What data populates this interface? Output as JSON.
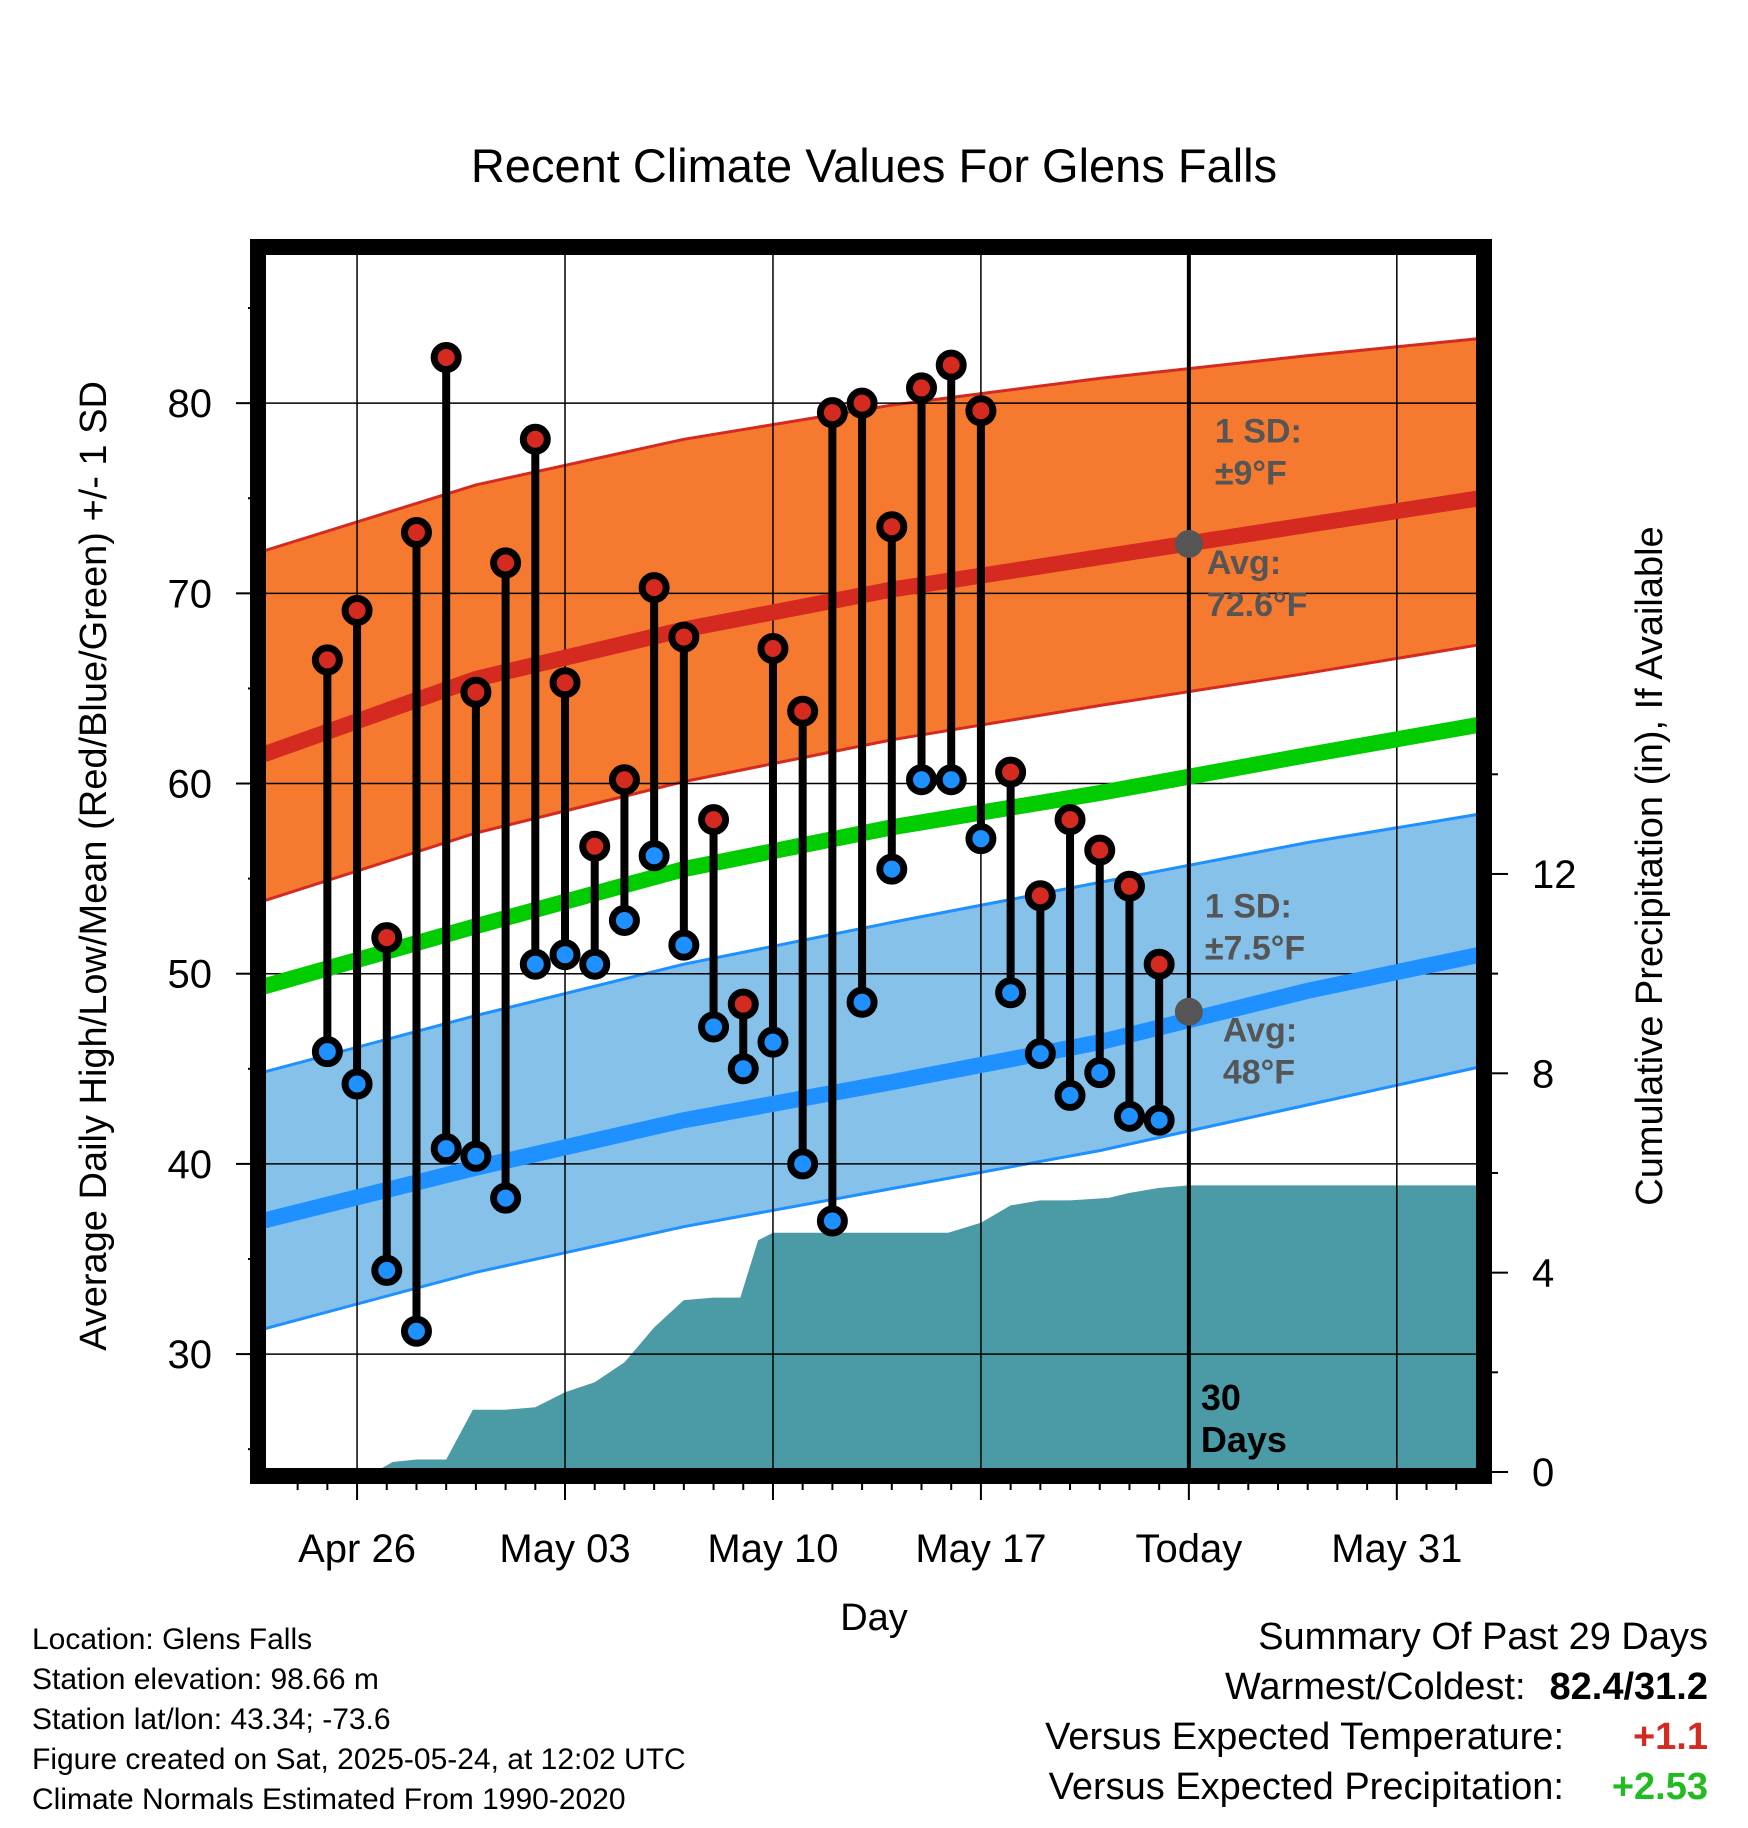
{
  "chart_data": {
    "type": "line",
    "title": "Recent Climate Values For Glens Falls",
    "xlabel": "Day",
    "ylabel": "Average Daily High/Low/Mean (Red/Blue/Green) +/- 1 SD",
    "y2label": "Cumulative Precipitation (in), If Available",
    "x_ticks": [
      {
        "day": 26,
        "label": "Apr 26"
      },
      {
        "day": 33,
        "label": "May 03"
      },
      {
        "day": 40,
        "label": "May 10"
      },
      {
        "day": 47,
        "label": "May 17"
      },
      {
        "day": 54,
        "label": "Today"
      },
      {
        "day": 61,
        "label": "May 31"
      }
    ],
    "xlim": [
      22.8,
      63.8
    ],
    "ylim": [
      23.8,
      88
    ],
    "y_ticks": [
      30,
      40,
      50,
      60,
      70,
      80
    ],
    "y2lim": [
      0,
      24.5
    ],
    "y2_ticks": [
      0,
      4,
      8,
      12
    ],
    "grid": true,
    "today_day": 54,
    "today_label_line1": "30",
    "today_label_line2": "Days",
    "colors": {
      "high_band": "#f57a30",
      "high_line": "#d42a20",
      "low_band": "#85c1e9",
      "low_line": "#1e90ff",
      "mean_line": "#00cc00",
      "precip": "#4a9ba5",
      "high_marker": "#d42a20",
      "low_marker": "#1e90ff",
      "avg_marker": "#555555",
      "annotation": "#555555"
    },
    "normals": {
      "x": [
        22.8,
        30,
        37,
        44,
        51,
        58,
        63.8
      ],
      "high_avg": [
        61.5,
        65.5,
        68.1,
        70.2,
        71.9,
        73.6,
        75
      ],
      "high_upper": [
        72.2,
        75.7,
        78.1,
        79.9,
        81.3,
        82.5,
        83.4
      ],
      "high_lower": [
        53.8,
        57.4,
        60.1,
        62.3,
        64.1,
        65.8,
        67.3
      ],
      "mean": [
        49.3,
        52.5,
        55.5,
        57.7,
        59.5,
        61.5,
        63.1
      ],
      "low_avg": [
        37,
        39.8,
        42.3,
        44.3,
        46.4,
        49.1,
        51
      ],
      "low_upper": [
        44.8,
        47.8,
        50.5,
        52.7,
        54.8,
        56.9,
        58.4
      ],
      "low_lower": [
        31.3,
        34.3,
        36.7,
        38.7,
        40.7,
        43.1,
        45.1
      ]
    },
    "observed": {
      "days": [
        25,
        26,
        27,
        28,
        29,
        30,
        31,
        32,
        33,
        34,
        35,
        36,
        37,
        38,
        39,
        40,
        41,
        42,
        43,
        44,
        45,
        46,
        47,
        48,
        49,
        50,
        51,
        52,
        53
      ],
      "highs": [
        66.5,
        69.1,
        51.9,
        73.2,
        82.4,
        64.8,
        71.6,
        78.1,
        65.3,
        56.7,
        60.2,
        70.3,
        67.7,
        58.1,
        48.4,
        67.1,
        63.8,
        79.5,
        80.0,
        73.5,
        80.8,
        82.0,
        79.6,
        60.6,
        54.1,
        58.1,
        56.5,
        54.6,
        50.5
      ],
      "lows": [
        45.9,
        44.2,
        34.4,
        31.2,
        40.8,
        40.4,
        38.2,
        50.5,
        51.0,
        50.5,
        52.8,
        56.2,
        51.5,
        47.2,
        45.0,
        46.4,
        40.0,
        37.0,
        48.5,
        55.5,
        60.2,
        60.2,
        57.1,
        49.0,
        45.8,
        43.6,
        44.8,
        42.5,
        42.3
      ]
    },
    "precip": {
      "x": [
        22.8,
        26.6,
        27.2,
        28.0,
        29.0,
        29.9,
        30.4,
        31.0,
        32.0,
        33.0,
        34.0,
        35.0,
        36.0,
        37.0,
        38.0,
        38.9,
        39.5,
        40.0,
        45.3,
        45.9,
        47.0,
        48.0,
        49.0,
        50.0,
        51.3,
        52.0,
        53.0,
        54.0,
        63.8
      ],
      "y": [
        0,
        0,
        0.2,
        0.25,
        0.25,
        1.25,
        1.25,
        1.25,
        1.3,
        1.6,
        1.8,
        2.2,
        2.9,
        3.45,
        3.5,
        3.5,
        4.65,
        4.8,
        4.8,
        4.8,
        5.0,
        5.35,
        5.45,
        5.45,
        5.5,
        5.6,
        5.7,
        5.75,
        5.75
      ]
    },
    "annotations": {
      "high_sd_label": "1 SD:",
      "high_sd_value": "±9°F",
      "high_avg_label": "Avg:",
      "high_avg_value": "72.6°F",
      "high_avg_point": 72.6,
      "low_sd_label": "1 SD:",
      "low_sd_value": "±7.5°F",
      "low_avg_label": "Avg:",
      "low_avg_value": "48°F",
      "low_avg_point": 48
    }
  },
  "footer": {
    "location": "Location: Glens Falls",
    "elevation": "Station elevation: 98.66 m",
    "latlon": "Station lat/lon: 43.34; -73.6",
    "created": "Figure created on Sat, 2025-05-24, at 12:02 UTC",
    "normals": "Climate Normals Estimated From 1990-2020"
  },
  "summary": {
    "title": "Summary Of Past 29 Days",
    "warmest_label": "Warmest/Coldest:",
    "warmest_value": "82.4/31.2",
    "temp_label": "Versus Expected Temperature:",
    "temp_value": "+1.1",
    "temp_color": "#d42a20",
    "precip_label": "Versus Expected Precipitation:",
    "precip_value": "+2.53",
    "precip_color": "#22bb22"
  }
}
